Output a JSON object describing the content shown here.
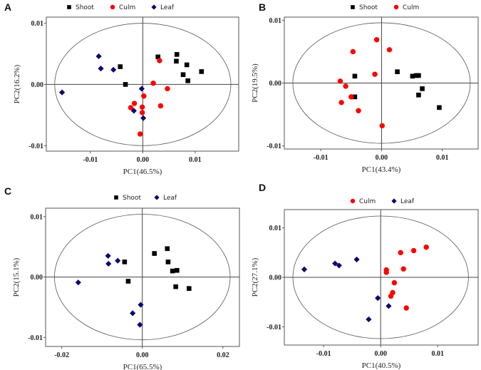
{
  "colors": {
    "Shoot": "#000000",
    "Culm": "#ff0000",
    "Leaf": "#0a0a6e"
  },
  "markers": {
    "Shoot": "square",
    "Culm": "circle",
    "Leaf": "diamond"
  },
  "chart_data": [
    {
      "type": "scatter",
      "panel": "A",
      "xlabel": "PC1(46.5%)",
      "ylabel": "PC2(16.2%)",
      "xlim": [
        -0.0184,
        0.0183
      ],
      "ylim": [
        -0.0109,
        0.011
      ],
      "xticks": [
        -0.01,
        0,
        0.01
      ],
      "xtick_labels": [
        "-0.01",
        "0.00",
        "0.01"
      ],
      "yticks": [
        -0.01,
        0,
        0.01
      ],
      "ytick_labels": [
        "-0.01",
        "0.00",
        "0.01"
      ],
      "ellipse": {
        "rx": 0.0168,
        "ry": 0.01
      },
      "legend": [
        "Shoot",
        "Culm",
        "Leaf"
      ],
      "legend_position": "top-center",
      "series": [
        {
          "name": "Shoot",
          "points": [
            [
              0.0029,
              0.0045
            ],
            [
              0.0065,
              0.0049
            ],
            [
              0.0064,
              0.0038
            ],
            [
              0.0084,
              0.0032
            ],
            [
              0.0077,
              0.0016
            ],
            [
              0.0086,
              0.0006
            ],
            [
              0.0112,
              0.0021
            ],
            [
              -0.0043,
              0.0029
            ],
            [
              -0.0033,
              0.0
            ]
          ]
        },
        {
          "name": "Culm",
          "points": [
            [
              0.0032,
              0.0039
            ],
            [
              0.002,
              0.0002
            ],
            [
              0.0047,
              -0.0007
            ],
            [
              0.0002,
              -0.0019
            ],
            [
              -0.0016,
              -0.0031
            ],
            [
              -0.0023,
              -0.0038
            ],
            [
              -0.0001,
              -0.0037
            ],
            [
              -0.0001,
              -0.0046
            ],
            [
              0.0034,
              -0.0035
            ],
            [
              -0.0005,
              -0.0081
            ]
          ]
        },
        {
          "name": "Leaf",
          "points": [
            [
              -0.0084,
              0.0046
            ],
            [
              -0.008,
              0.0026
            ],
            [
              -0.0056,
              0.0024
            ],
            [
              -0.0154,
              -0.0013
            ],
            [
              -0.0002,
              -0.0007
            ],
            [
              -0.0017,
              -0.0043
            ],
            [
              0.0001,
              -0.0055
            ]
          ]
        }
      ]
    },
    {
      "type": "scatter",
      "panel": "B",
      "xlabel": "PC1(43.4%)",
      "ylabel": "PC2(19.5%)",
      "xlim": [
        -0.016,
        0.0159
      ],
      "ylim": [
        -0.0105,
        0.0105
      ],
      "xticks": [
        -0.01,
        0,
        0.01
      ],
      "xtick_labels": [
        "-0.01",
        "0.00",
        "0.01"
      ],
      "yticks": [
        -0.01,
        0,
        0.01
      ],
      "ytick_labels": [
        "-0.01",
        "0.00",
        "0.01"
      ],
      "ellipse": {
        "rx": 0.0146,
        "ry": 0.0096
      },
      "legend": [
        "Shoot",
        "Culm"
      ],
      "legend_position": "top-center",
      "series": [
        {
          "name": "Shoot",
          "points": [
            [
              -0.0044,
              0.0011
            ],
            [
              -0.0044,
              -0.0022
            ],
            [
              0.0026,
              0.0018
            ],
            [
              0.0051,
              0.0011
            ],
            [
              0.0057,
              0.0012
            ],
            [
              0.0061,
              0.0012
            ],
            [
              0.0067,
              -0.0009
            ],
            [
              0.0061,
              -0.0019
            ],
            [
              0.0095,
              -0.0039
            ]
          ]
        },
        {
          "name": "Culm",
          "points": [
            [
              -0.0008,
              0.0069
            ],
            [
              0.0013,
              0.0053
            ],
            [
              -0.0047,
              0.005
            ],
            [
              -0.0011,
              0.0014
            ],
            [
              -0.0068,
              0.0003
            ],
            [
              -0.0059,
              -0.0005
            ],
            [
              -0.005,
              -0.0022
            ],
            [
              -0.0066,
              -0.0031
            ],
            [
              -0.0038,
              -0.0044
            ],
            [
              0.0001,
              -0.0068
            ]
          ]
        }
      ]
    },
    {
      "type": "scatter",
      "panel": "C",
      "xlabel": "PC1(65.5%)",
      "ylabel": "PC2(15.1%)",
      "xlim": [
        -0.024,
        0.0241
      ],
      "ylim": [
        -0.0115,
        0.0114
      ],
      "xticks": [
        -0.02,
        0,
        0.02
      ],
      "xtick_labels": [
        "-0.02",
        "0.00",
        "0.02"
      ],
      "yticks": [
        -0.01,
        0,
        0.01
      ],
      "ytick_labels": [
        "-0.01",
        "0.00",
        "0.01"
      ],
      "ellipse": {
        "rx": 0.0218,
        "ry": 0.0104
      },
      "legend": [
        "Shoot",
        "Leaf"
      ],
      "legend_position": "top-center",
      "series": [
        {
          "name": "Shoot",
          "points": [
            [
              0.003,
              0.0039
            ],
            [
              0.0062,
              0.0047
            ],
            [
              0.0064,
              0.0025
            ],
            [
              0.0075,
              0.001
            ],
            [
              0.0086,
              0.0011
            ],
            [
              0.0083,
              -0.0016
            ],
            [
              0.0116,
              -0.0019
            ],
            [
              -0.0044,
              0.0025
            ],
            [
              -0.0035,
              -0.0007
            ]
          ]
        },
        {
          "name": "Leaf",
          "points": [
            [
              -0.0085,
              0.0035
            ],
            [
              -0.0084,
              0.0022
            ],
            [
              -0.0061,
              0.0027
            ],
            [
              -0.0159,
              -0.0009
            ],
            [
              -0.0004,
              -0.0046
            ],
            [
              -0.0024,
              -0.006
            ],
            [
              -0.0006,
              -0.0079
            ]
          ]
        }
      ]
    },
    {
      "type": "scatter",
      "panel": "D",
      "xlabel": "PC1(40.5%)",
      "ylabel": "PC2(27.1%)",
      "xlim": [
        -0.0169,
        0.0171
      ],
      "ylim": [
        -0.0137,
        0.0137
      ],
      "xticks": [
        -0.01,
        0,
        0.01
      ],
      "xtick_labels": [
        "-0.01",
        "0.00",
        "0.01"
      ],
      "yticks": [
        -0.01,
        0,
        0.01
      ],
      "ytick_labels": [
        "-0.01",
        "0.00",
        "0.01"
      ],
      "ellipse": {
        "rx": 0.0154,
        "ry": 0.0124
      },
      "legend": [
        "Culm",
        "Leaf"
      ],
      "legend_position": "top-center",
      "series": [
        {
          "name": "Culm",
          "points": [
            [
              0.008,
              0.0061
            ],
            [
              0.0058,
              0.0054
            ],
            [
              0.0035,
              0.005
            ],
            [
              0.004,
              0.0017
            ],
            [
              0.001,
              0.0015
            ],
            [
              0.001,
              0.001
            ],
            [
              0.0024,
              -0.0011
            ],
            [
              0.0021,
              -0.0031
            ],
            [
              0.0018,
              -0.0038
            ],
            [
              0.0045,
              -0.0062
            ]
          ]
        },
        {
          "name": "Leaf",
          "points": [
            [
              -0.0134,
              0.0016
            ],
            [
              -0.008,
              0.0028
            ],
            [
              -0.0073,
              0.0024
            ],
            [
              -0.0042,
              0.0036
            ],
            [
              -0.0005,
              -0.0042
            ],
            [
              0.0014,
              -0.0058
            ],
            [
              -0.0021,
              -0.0085
            ]
          ]
        }
      ]
    }
  ]
}
